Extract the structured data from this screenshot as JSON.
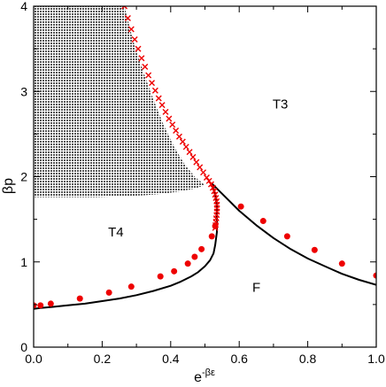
{
  "chart_data": {
    "type": "scatter",
    "title": "",
    "xlabel": "e",
    "xlabel_superscript": "-βε",
    "ylabel": "βp",
    "xlim": [
      0.0,
      1.0
    ],
    "ylim": [
      0,
      4
    ],
    "x_ticks": [
      "0.0",
      "0.2",
      "0.4",
      "0.6",
      "0.8",
      "1.0"
    ],
    "y_ticks": [
      "0",
      "1",
      "2",
      "3",
      "4"
    ],
    "grid": false,
    "legend": "none",
    "region_labels": [
      {
        "text": "T3",
        "x": 0.72,
        "y": 2.8
      },
      {
        "text": "T4",
        "x": 0.24,
        "y": 1.3
      },
      {
        "text": "F",
        "x": 0.65,
        "y": 0.65
      }
    ],
    "series": [
      {
        "kind": "shaded-region",
        "color": "#555555",
        "upper_x": [
          0.0,
          0.265,
          0.29,
          0.32,
          0.35,
          0.38,
          0.41,
          0.44,
          0.47,
          0.5
        ],
        "upper_y": [
          4.0,
          4.0,
          3.6,
          3.23,
          2.9,
          2.6,
          2.35,
          2.15,
          2.0,
          1.9
        ],
        "lower_x": [
          0.5,
          0.47,
          0.43,
          0.38,
          0.32,
          0.25,
          0.18,
          0.1,
          0.0
        ],
        "lower_y": [
          1.9,
          1.86,
          1.83,
          1.8,
          1.78,
          1.77,
          1.76,
          1.76,
          1.76
        ]
      },
      {
        "kind": "line",
        "color": "#000000",
        "x": [
          0.0,
          0.02,
          0.05,
          0.1,
          0.15,
          0.2,
          0.25,
          0.3,
          0.35,
          0.4,
          0.43,
          0.46,
          0.48,
          0.5,
          0.515,
          0.525,
          0.53,
          0.535,
          0.535,
          0.535,
          0.53,
          0.525,
          0.52
        ],
        "y": [
          0.45,
          0.46,
          0.47,
          0.49,
          0.51,
          0.54,
          0.57,
          0.61,
          0.66,
          0.72,
          0.77,
          0.83,
          0.88,
          0.95,
          1.02,
          1.1,
          1.2,
          1.35,
          1.5,
          1.65,
          1.78,
          1.87,
          1.92
        ]
      },
      {
        "kind": "line",
        "color": "#000000",
        "x": [
          0.52,
          0.55,
          0.6,
          0.65,
          0.7,
          0.75,
          0.8,
          0.85,
          0.9,
          0.95,
          1.0
        ],
        "y": [
          1.92,
          1.8,
          1.6,
          1.43,
          1.28,
          1.15,
          1.04,
          0.95,
          0.86,
          0.79,
          0.73
        ]
      },
      {
        "kind": "dots",
        "color": "#ee0000",
        "x": [
          0.0,
          0.02,
          0.05,
          0.135,
          0.22,
          0.285,
          0.37,
          0.41,
          0.45,
          0.47,
          0.49,
          0.52,
          0.53,
          0.605,
          0.67,
          0.74,
          0.82,
          0.9,
          1.0
        ],
        "y": [
          0.49,
          0.49,
          0.51,
          0.57,
          0.64,
          0.71,
          0.83,
          0.89,
          0.98,
          1.06,
          1.15,
          1.3,
          1.42,
          1.65,
          1.48,
          1.3,
          1.14,
          0.98,
          0.84
        ]
      },
      {
        "kind": "crosses",
        "color": "#ee0000",
        "x": [
          0.265,
          0.275,
          0.285,
          0.295,
          0.305,
          0.315,
          0.325,
          0.335,
          0.345,
          0.355,
          0.365,
          0.375,
          0.385,
          0.395,
          0.405,
          0.415,
          0.425,
          0.435,
          0.445,
          0.455,
          0.465,
          0.475,
          0.485,
          0.495,
          0.505,
          0.512,
          0.518,
          0.523,
          0.527,
          0.53,
          0.532,
          0.534,
          0.535,
          0.535,
          0.535,
          0.534,
          0.533,
          0.532,
          0.531,
          0.53
        ],
        "y": [
          4.0,
          3.86,
          3.73,
          3.61,
          3.5,
          3.39,
          3.29,
          3.19,
          3.1,
          3.01,
          2.92,
          2.84,
          2.76,
          2.68,
          2.61,
          2.54,
          2.47,
          2.41,
          2.35,
          2.29,
          2.23,
          2.17,
          2.11,
          2.05,
          1.99,
          1.95,
          1.91,
          1.87,
          1.83,
          1.79,
          1.75,
          1.71,
          1.67,
          1.63,
          1.59,
          1.55,
          1.51,
          1.47,
          1.43,
          1.4
        ]
      }
    ]
  }
}
